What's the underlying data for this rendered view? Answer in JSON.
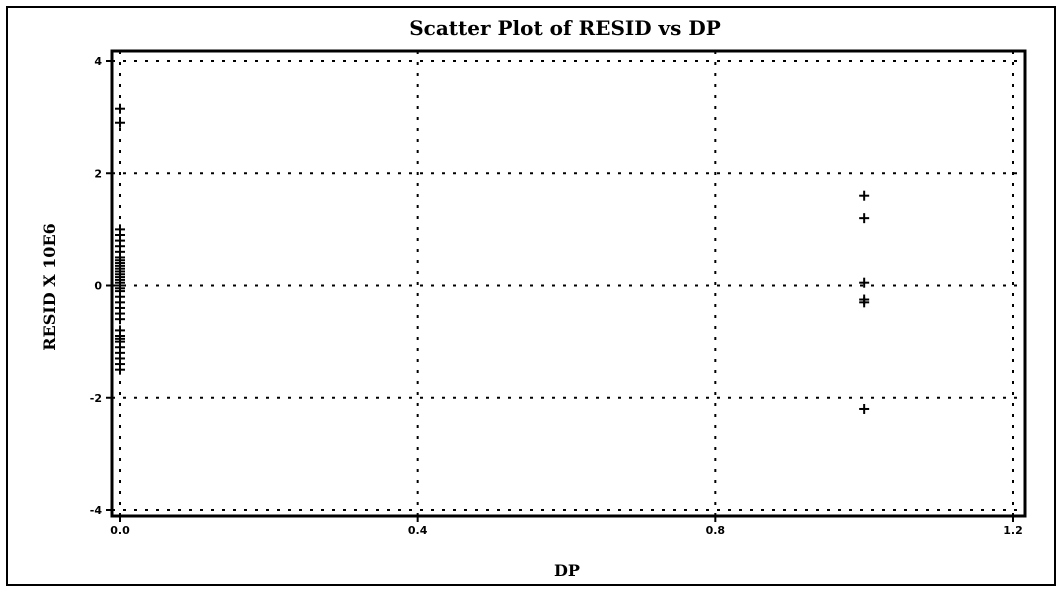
{
  "chart_data": {
    "type": "scatter",
    "title": "Scatter Plot of RESID vs DP",
    "xlabel": "DP",
    "ylabel": "RESID X 10E6",
    "xlim": [
      0.0,
      1.2
    ],
    "ylim": [
      -4.0,
      4.0
    ],
    "x_ticks": [
      "0.0",
      "0.4",
      "0.8",
      "1.2"
    ],
    "y_ticks": [
      "4",
      "2",
      "0",
      "-2",
      "-4"
    ],
    "grid": true,
    "marker": "+",
    "points": [
      {
        "x": 0,
        "y": 3.15
      },
      {
        "x": 0,
        "y": 2.9
      },
      {
        "x": 0,
        "y": 1.0
      },
      {
        "x": 0,
        "y": 0.9
      },
      {
        "x": 0,
        "y": 0.8
      },
      {
        "x": 0,
        "y": 0.7
      },
      {
        "x": 0,
        "y": 0.6
      },
      {
        "x": 0,
        "y": 0.5
      },
      {
        "x": 0,
        "y": 0.45
      },
      {
        "x": 0,
        "y": 0.4
      },
      {
        "x": 0,
        "y": 0.35
      },
      {
        "x": 0,
        "y": 0.3
      },
      {
        "x": 0,
        "y": 0.25
      },
      {
        "x": 0,
        "y": 0.2
      },
      {
        "x": 0,
        "y": 0.15
      },
      {
        "x": 0,
        "y": 0.1
      },
      {
        "x": 0,
        "y": 0.05
      },
      {
        "x": 0,
        "y": 0.0
      },
      {
        "x": 0,
        "y": -0.05
      },
      {
        "x": 0,
        "y": -0.1
      },
      {
        "x": 0,
        "y": -0.2
      },
      {
        "x": 0,
        "y": -0.3
      },
      {
        "x": 0,
        "y": -0.4
      },
      {
        "x": 0,
        "y": -0.5
      },
      {
        "x": 0,
        "y": -0.6
      },
      {
        "x": 0,
        "y": -0.8
      },
      {
        "x": 0,
        "y": -0.9
      },
      {
        "x": 0,
        "y": -0.95
      },
      {
        "x": 0,
        "y": -1.0
      },
      {
        "x": 0,
        "y": -1.1
      },
      {
        "x": 0,
        "y": -1.2
      },
      {
        "x": 0,
        "y": -1.3
      },
      {
        "x": 0,
        "y": -1.4
      },
      {
        "x": 0,
        "y": -1.5
      },
      {
        "x": 1.0,
        "y": 1.6
      },
      {
        "x": 1.0,
        "y": 1.2
      },
      {
        "x": 1.0,
        "y": 0.05
      },
      {
        "x": 1.0,
        "y": -0.25
      },
      {
        "x": 1.0,
        "y": -0.3
      },
      {
        "x": 1.0,
        "y": -2.2
      }
    ]
  }
}
